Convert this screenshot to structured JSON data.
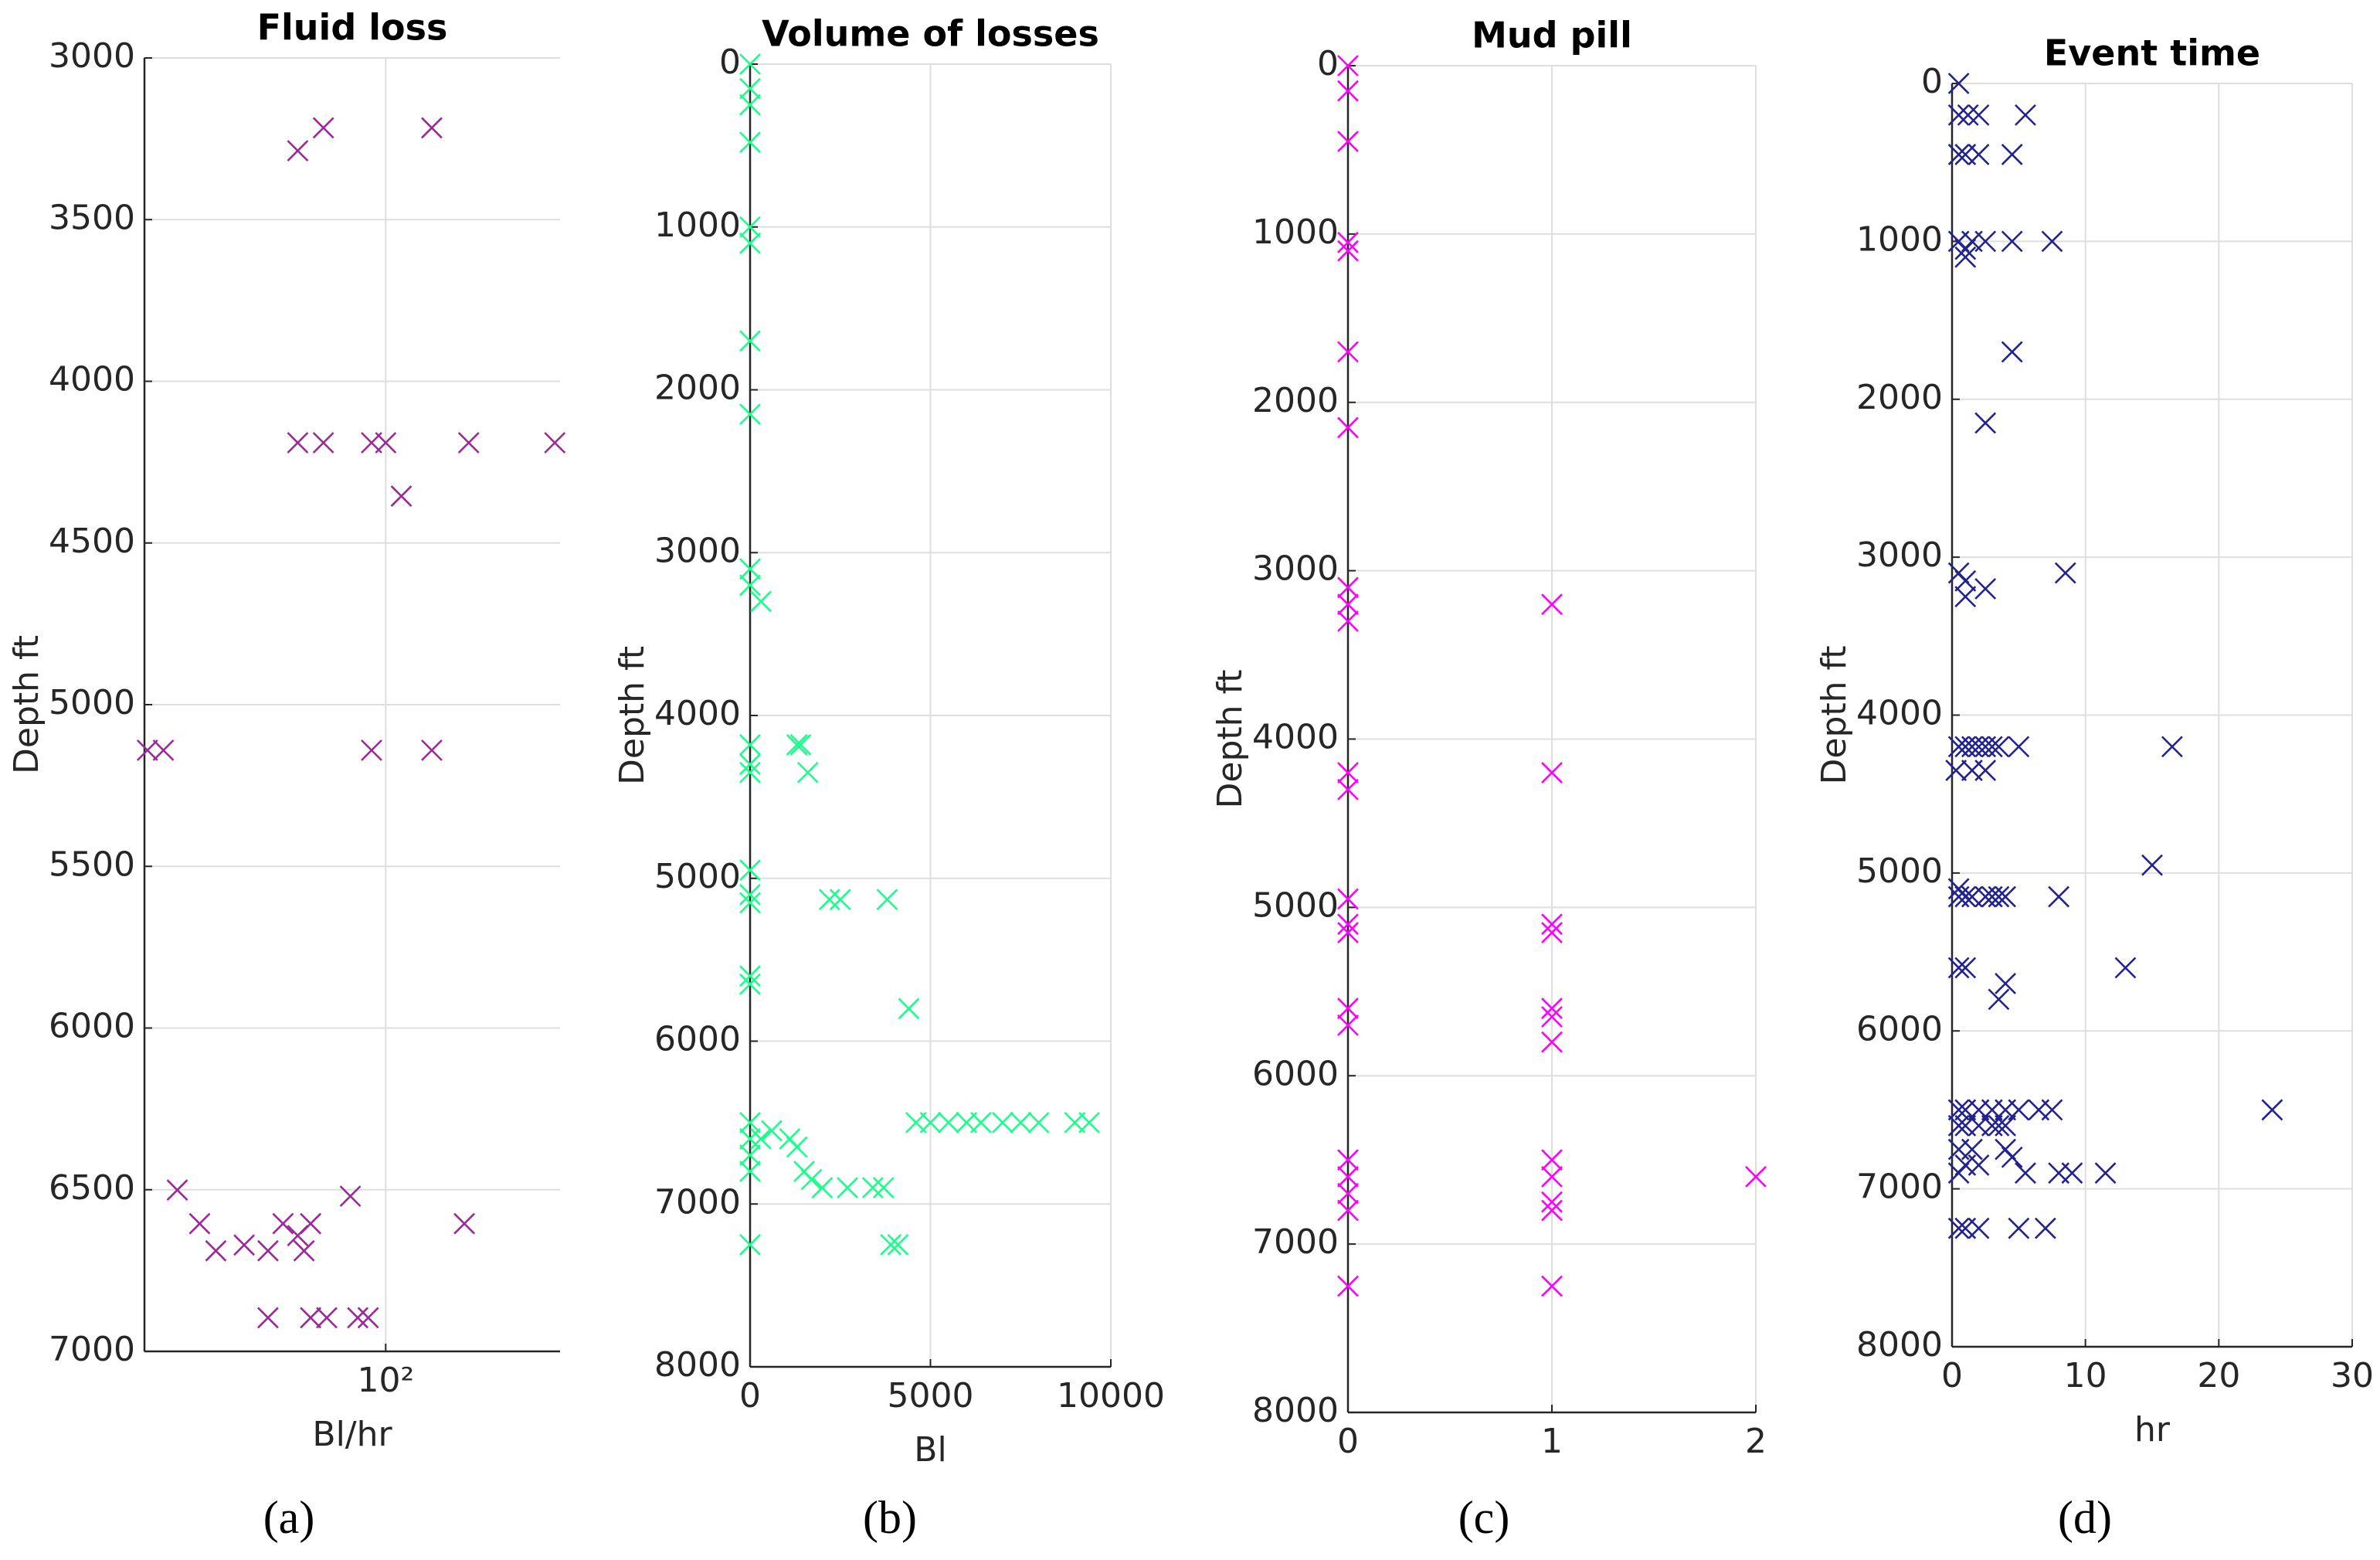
{
  "chart_data": [
    {
      "type": "scatter",
      "title": "Fluid loss",
      "xlabel": "Bl/hr",
      "ylabel": "Depth ft",
      "caption": "(a)",
      "color": "#9a2b96",
      "xscale": "log",
      "xlim": [
        20,
        320
      ],
      "xticks": [
        {
          "value": 100,
          "label": "10²"
        }
      ],
      "ylim": [
        3000,
        7000
      ],
      "yticks": [
        3000,
        3500,
        4000,
        4500,
        5000,
        5500,
        6000,
        6500,
        7000
      ],
      "yreverse": true,
      "grid": true,
      "x": [
        55.6,
        66,
        136,
        55.6,
        66,
        91,
        100,
        174,
        309,
        111,
        20.4,
        22.7,
        91,
        136,
        24.9,
        28.9,
        50.4,
        60.6,
        79,
        169,
        38.9,
        32.2,
        45.6,
        55.6,
        58,
        45.6,
        60.6,
        67.5,
        83,
        89
      ],
      "values": [
        3287,
        3216,
        3216,
        4190,
        4190,
        4190,
        4190,
        4190,
        4190,
        4355,
        5141,
        5141,
        5141,
        5141,
        6501,
        6605,
        6605,
        6605,
        6520,
        6605,
        6671,
        6689,
        6689,
        6642,
        6689,
        6896,
        6896,
        6896,
        6896,
        6896
      ]
    },
    {
      "type": "scatter",
      "title": "Volume of losses",
      "xlabel": "Bl",
      "ylabel": "Depth ft",
      "caption": "(b)",
      "color": "#1aff8a",
      "xlim": [
        0,
        10000
      ],
      "xticks": [
        0,
        5000,
        10000
      ],
      "ylim": [
        0,
        8000
      ],
      "yticks": [
        0,
        1000,
        2000,
        3000,
        4000,
        5000,
        6000,
        7000,
        8000
      ],
      "yreverse": true,
      "grid": true,
      "x": [
        0,
        0,
        0,
        0,
        0,
        0,
        0,
        0,
        0,
        0,
        300,
        0,
        0,
        0,
        1300,
        1400,
        1600,
        0,
        0,
        0,
        2200,
        2500,
        3800,
        4400,
        0,
        0,
        0,
        0,
        0,
        0,
        300,
        600,
        1100,
        1300,
        1500,
        1700,
        2000,
        2700,
        3400,
        3700,
        3900,
        4100,
        0,
        4600,
        5000,
        5500,
        6000,
        6400,
        7000,
        7500,
        8000,
        9000,
        9400
      ],
      "values": [
        0,
        150,
        250,
        480,
        1000,
        1100,
        1700,
        2150,
        3100,
        3200,
        3300,
        4180,
        4300,
        4350,
        4180,
        4180,
        4350,
        4950,
        5100,
        5150,
        5130,
        5130,
        5130,
        5800,
        5600,
        5650,
        6500,
        6600,
        6700,
        6800,
        6600,
        6550,
        6600,
        6650,
        6800,
        6850,
        6900,
        6900,
        6900,
        6900,
        7250,
        7250,
        7250,
        6500,
        6500,
        6500,
        6500,
        6500,
        6500,
        6500,
        6500,
        6500,
        6500
      ]
    },
    {
      "type": "scatter",
      "title": "Mud pill",
      "xlabel": null,
      "ylabel": "Depth ft",
      "caption": "(c)",
      "color": "#ff00ff",
      "xlim": [
        0,
        2
      ],
      "xticks": [
        0,
        1,
        2
      ],
      "ylim": [
        0,
        8000
      ],
      "yticks": [
        0,
        1000,
        2000,
        3000,
        4000,
        5000,
        6000,
        7000,
        8000
      ],
      "yreverse": true,
      "grid": true,
      "x": [
        0,
        0,
        0,
        0,
        0,
        0,
        0,
        0,
        0,
        0,
        0,
        0,
        0,
        0,
        0,
        0,
        0,
        0,
        0,
        0,
        0,
        0,
        1,
        1,
        1,
        1,
        1,
        1,
        1,
        1,
        1,
        1,
        1,
        1,
        2
      ],
      "values": [
        0,
        150,
        450,
        1050,
        1100,
        1700,
        2150,
        3100,
        3200,
        3300,
        4200,
        4300,
        4950,
        5100,
        5150,
        5600,
        5700,
        6500,
        6600,
        6700,
        6800,
        7250,
        3200,
        4200,
        5100,
        5150,
        5600,
        5650,
        5800,
        6500,
        6600,
        6750,
        6800,
        7250,
        6600
      ]
    },
    {
      "type": "scatter",
      "title": "Event time",
      "xlabel": "hr",
      "ylabel": "Depth ft",
      "caption": "(d)",
      "color": "#23238f",
      "xlim": [
        0,
        30
      ],
      "xticks": [
        0,
        10,
        20,
        30
      ],
      "ylim": [
        0,
        8000
      ],
      "yticks": [
        0,
        1000,
        2000,
        3000,
        4000,
        5000,
        6000,
        7000,
        8000
      ],
      "yreverse": true,
      "grid": true,
      "x": [
        0.5,
        0.5,
        1.2,
        2,
        5.5,
        0.5,
        1,
        2,
        4.5,
        0.5,
        1,
        1.5,
        2.5,
        4.5,
        7.5,
        1,
        4.5,
        2.5,
        0.5,
        1,
        1,
        2.5,
        8.5,
        0.5,
        1,
        1.5,
        2,
        2.5,
        3,
        3.5,
        5,
        16.5,
        0.3,
        1.5,
        2.5,
        15,
        0.5,
        0.5,
        1,
        1.5,
        2.5,
        3,
        3.5,
        4,
        8,
        0.5,
        1,
        13,
        4,
        3.5,
        0.5,
        1,
        2,
        3,
        4,
        5,
        6.5,
        7.5,
        24,
        0.5,
        1,
        2,
        3,
        3.5,
        4,
        0.5,
        1.5,
        4,
        4.5,
        0.5,
        1,
        2,
        5.5,
        8,
        9,
        11.5,
        0.5,
        1,
        2,
        5,
        7
      ],
      "values": [
        0,
        200,
        200,
        200,
        200,
        450,
        450,
        450,
        450,
        1000,
        1050,
        1000,
        1000,
        1000,
        1000,
        1100,
        1700,
        2150,
        3100,
        3150,
        3250,
        3200,
        3100,
        4200,
        4200,
        4200,
        4200,
        4200,
        4200,
        4200,
        4200,
        4200,
        4350,
        4350,
        4350,
        4950,
        5100,
        5150,
        5150,
        5150,
        5150,
        5150,
        5150,
        5150,
        5150,
        5600,
        5600,
        5600,
        5700,
        5800,
        6500,
        6500,
        6500,
        6500,
        6500,
        6500,
        6500,
        6500,
        6500,
        6600,
        6600,
        6600,
        6600,
        6600,
        6600,
        6750,
        6750,
        6750,
        6800,
        6900,
        6850,
        6850,
        6900,
        6900,
        6900,
        6900,
        7250,
        7250,
        7250,
        7250,
        7250
      ]
    }
  ]
}
